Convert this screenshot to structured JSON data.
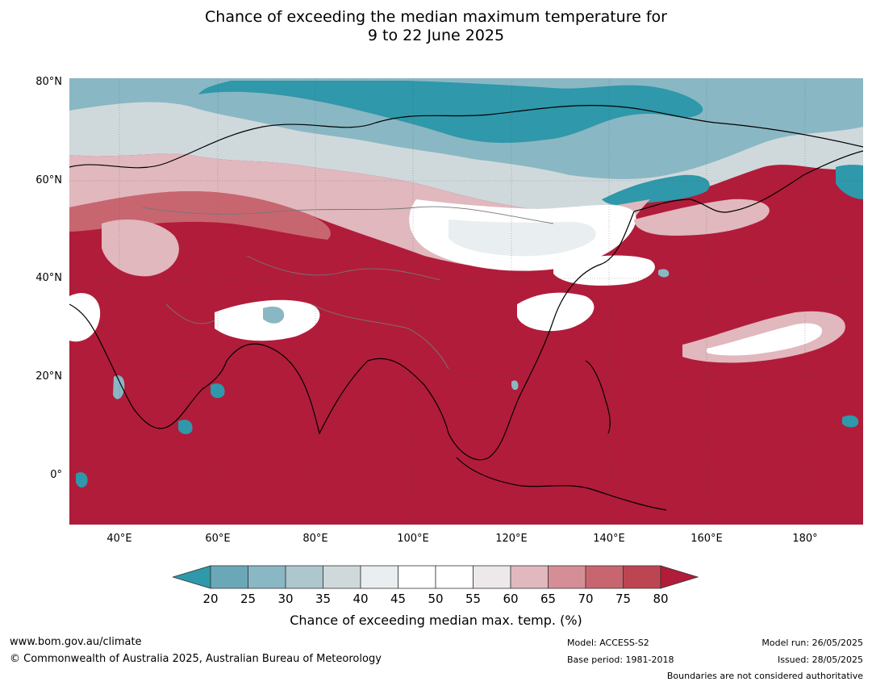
{
  "title_line1": "Chance of exceeding the median maximum temperature for",
  "title_line2": "9 to 22 June 2025",
  "lat_labels": [
    "80°N",
    "60°N",
    "40°N",
    "20°N",
    "0°"
  ],
  "lon_labels": [
    "40°E",
    "60°E",
    "80°E",
    "100°E",
    "120°E",
    "140°E",
    "160°E",
    "180°"
  ],
  "colorbar": {
    "ticks": [
      "20",
      "25",
      "30",
      "35",
      "40",
      "45",
      "50",
      "55",
      "60",
      "65",
      "70",
      "75",
      "80"
    ],
    "colors": [
      "#2f98aa",
      "#6aa8b8",
      "#8ab7c4",
      "#aec6cd",
      "#cfd9dc",
      "#e9eef0",
      "#ffffff",
      "#ffffff",
      "#ede9ea",
      "#e0b8bd",
      "#d68e96",
      "#c86670",
      "#bd4552",
      "#b11c3a"
    ],
    "title": "Chance of exceeding median max. temp. (%)"
  },
  "map_colors": {
    "warm": "#b11c3a",
    "warm2": "#bd4552",
    "warm3": "#c86670",
    "warm4": "#d68e96",
    "warm5": "#e0b8bd",
    "neutral": "#ffffff",
    "cool1": "#e9eef0",
    "cool2": "#cfd9dc",
    "cool3": "#8ab7c4",
    "cool4": "#2f98aa"
  },
  "footer": {
    "url": "www.bom.gov.au/climate",
    "copyright": "© Commonwealth of Australia 2025, Australian Bureau of Meteorology",
    "model": "Model: ACCESS-S2",
    "base_period": "Base period: 1981-2018",
    "model_run": "Model run: 26/05/2025",
    "issued": "Issued: 28/05/2025",
    "boundaries": "Boundaries are not considered authoritative"
  }
}
